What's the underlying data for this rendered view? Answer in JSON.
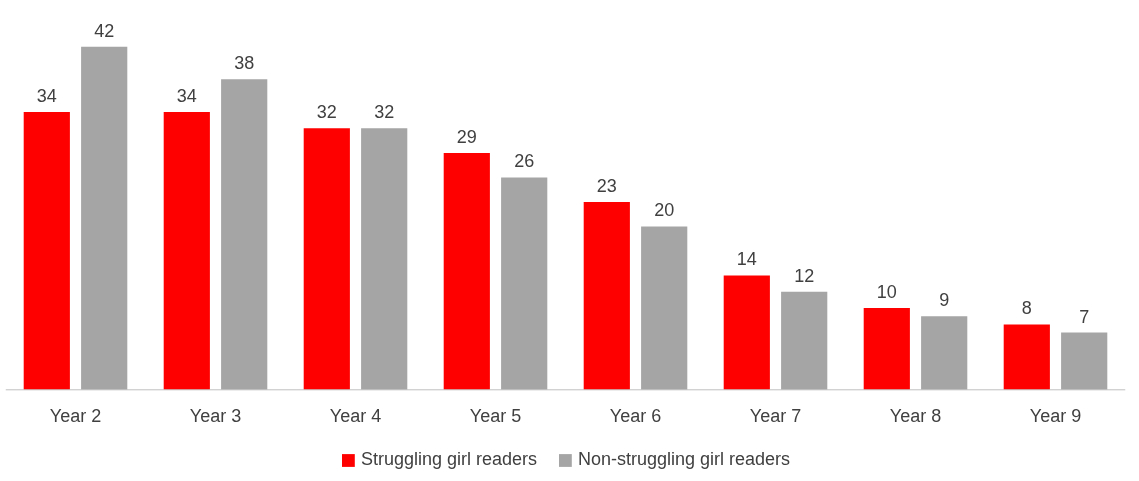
{
  "chart_data": {
    "type": "bar",
    "categories": [
      "Year 2",
      "Year 3",
      "Year 4",
      "Year 5",
      "Year 6",
      "Year 7",
      "Year 8",
      "Year 9"
    ],
    "series": [
      {
        "name": "Struggling girl readers",
        "color": "#ff0000",
        "values": [
          34,
          34,
          32,
          29,
          23,
          14,
          10,
          8
        ]
      },
      {
        "name": "Non-struggling girl readers",
        "color": "#a5a5a5",
        "values": [
          42,
          38,
          32,
          26,
          20,
          12,
          9,
          7
        ]
      }
    ],
    "data_labels": true,
    "grid": false,
    "legend": "bottom"
  }
}
